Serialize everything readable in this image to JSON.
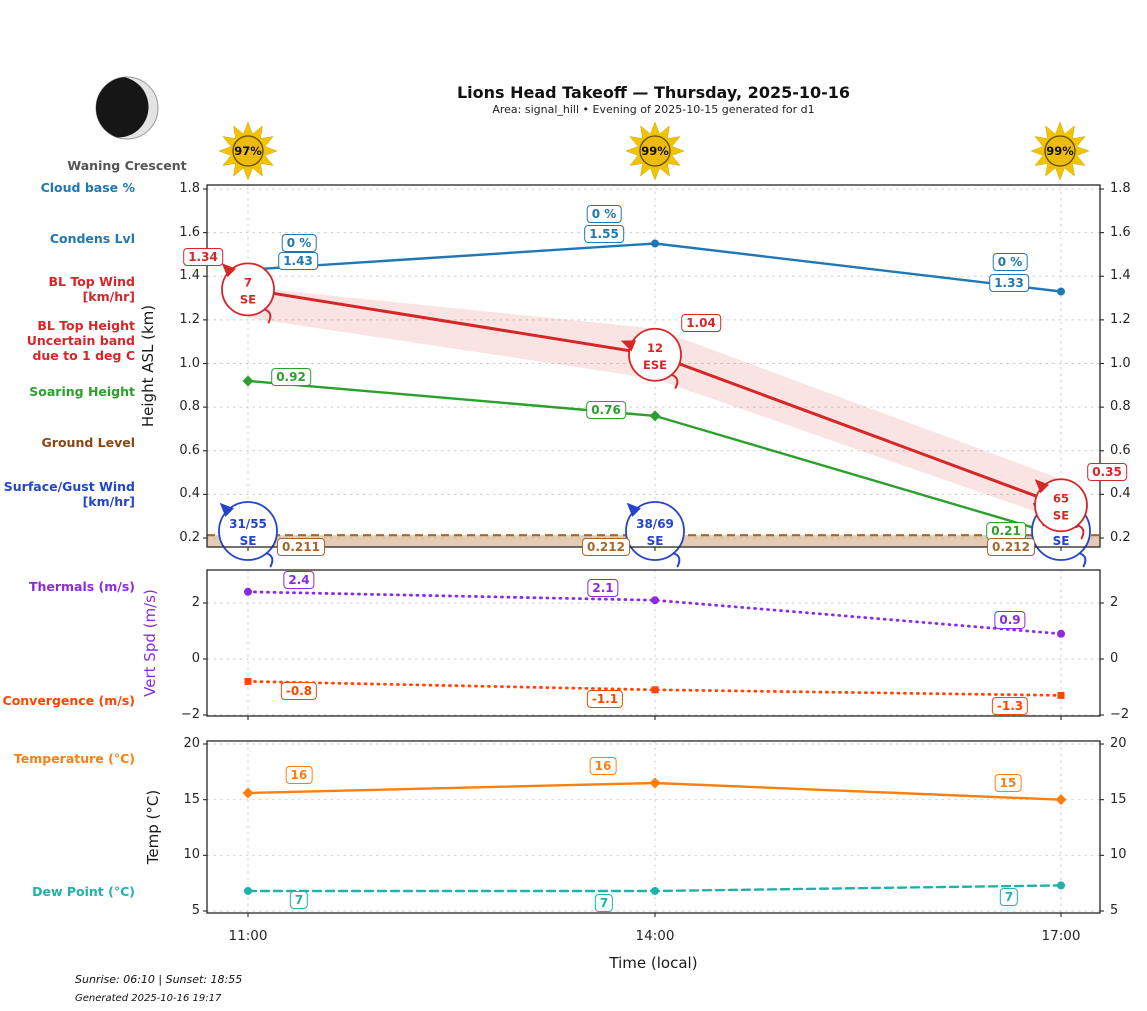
{
  "header": {
    "title": "Lions Head Takeoff — Thursday, 2025-10-16",
    "subtitle": "Area: signal_hill • Evening of 2025-10-15 generated for d1"
  },
  "moon": {
    "label": "Waning Crescent",
    "phase": "waning-crescent"
  },
  "suns": [
    {
      "percent": "97%"
    },
    {
      "percent": "99%"
    },
    {
      "percent": "99%"
    }
  ],
  "sidebar_labels": [
    {
      "id": "cloud-base",
      "lines": [
        "Cloud base %"
      ],
      "color": "#1f77b4"
    },
    {
      "id": "condens-lvl",
      "lines": [
        "Condens Lvl"
      ],
      "color": "#1f77b4"
    },
    {
      "id": "bl-top-wind",
      "lines": [
        "BL Top Wind",
        "[km/hr]"
      ],
      "color": "#d62728"
    },
    {
      "id": "bl-top-height",
      "lines": [
        "BL Top Height",
        "Uncertain band",
        "due to 1 deg C"
      ],
      "color": "#d62728"
    },
    {
      "id": "soaring-height",
      "lines": [
        "Soaring Height"
      ],
      "color": "#2ca02c"
    },
    {
      "id": "ground-level",
      "lines": [
        "Ground Level"
      ],
      "color": "#8b4513"
    },
    {
      "id": "surface-gust-wind",
      "lines": [
        "Surface/Gust Wind",
        "[km/hr]"
      ],
      "color": "#2444cc"
    },
    {
      "id": "thermals",
      "lines": [
        "Thermals (m/s)"
      ],
      "color": "#8a2be2"
    },
    {
      "id": "convergence",
      "lines": [
        "Convergence (m/s)"
      ],
      "color": "#ff4500"
    },
    {
      "id": "temperature",
      "lines": [
        "Temperature (°C)"
      ],
      "color": "#ff7f0e"
    },
    {
      "id": "dew-point",
      "lines": [
        "Dew Point (°C)"
      ],
      "color": "#20b2aa"
    }
  ],
  "x_axis": {
    "ticks": [
      "11:00",
      "14:00",
      "17:00"
    ],
    "label": "Time (local)"
  },
  "footer": {
    "sun_times": "Sunrise: 06:10 | Sunset: 18:55",
    "generated": "Generated 2025-10-16 19:17"
  },
  "chart_data": [
    {
      "type": "line",
      "ylabel": "Height ASL (km)",
      "x": [
        "11:00",
        "14:00",
        "17:00"
      ],
      "ylim": [
        0.2,
        1.8
      ],
      "yticks": [
        0.2,
        0.4,
        0.6,
        0.8,
        1.0,
        1.2,
        1.4,
        1.6,
        1.8
      ],
      "grid": true,
      "series": [
        {
          "name": "Condens Lvl",
          "color": "#1f77b4",
          "line": "solid",
          "marker": "circle",
          "values": [
            1.43,
            1.55,
            1.33
          ],
          "value_labels": [
            "1.43",
            "1.55",
            "1.33"
          ],
          "cloud_base_labels": [
            "0 %",
            "0 %",
            "0 %"
          ]
        },
        {
          "name": "BL Top Height",
          "color": "#d62728",
          "line": "solid",
          "marker": "wind-circle",
          "values": [
            1.34,
            1.04,
            0.35
          ],
          "value_labels": [
            "1.34",
            "1.04",
            "0.35"
          ],
          "wind": [
            {
              "speed": "7",
              "dir": "SE"
            },
            {
              "speed": "12",
              "dir": "ESE"
            },
            {
              "speed": "65",
              "dir": "SE"
            }
          ],
          "band_upper": [
            1.35,
            1.16,
            0.47
          ],
          "band_lower": [
            1.21,
            0.93,
            0.28
          ],
          "band_color": "rgba(214,39,40,0.13)"
        },
        {
          "name": "Soaring Height",
          "color": "#2ca02c",
          "line": "solid",
          "marker": "diamond",
          "values": [
            0.92,
            0.76,
            0.21
          ],
          "value_labels": [
            "0.92",
            "0.76",
            "0.21"
          ]
        },
        {
          "name": "Ground Level",
          "color": "#a5682a",
          "line": "dashed",
          "values": [
            0.211,
            0.212,
            0.212
          ],
          "value_labels": [
            "0.211",
            "0.212",
            "0.212"
          ],
          "fill_color": "rgba(205,164,118,0.55)"
        },
        {
          "name": "Surface/Gust Wind",
          "color": "#2444cc",
          "marker": "wind-circle",
          "wind": [
            {
              "speed": "31/55",
              "dir": "SE"
            },
            {
              "speed": "38/69",
              "dir": "SE"
            },
            {
              "speed": "42/76",
              "dir": "SE"
            }
          ]
        }
      ]
    },
    {
      "type": "line",
      "ylabel": "Vert Spd (m/s)",
      "x": [
        "11:00",
        "14:00",
        "17:00"
      ],
      "ylim": [
        -2.2,
        3.2
      ],
      "yticks": [
        2,
        0,
        -2
      ],
      "ytick_labels": [
        "2",
        "0",
        "−2"
      ],
      "grid": true,
      "series": [
        {
          "name": "Thermals",
          "color": "#8a2be2",
          "line": "dotted",
          "marker": "circle",
          "values": [
            2.4,
            2.1,
            0.9
          ],
          "value_labels": [
            "2.4",
            "2.1",
            "0.9"
          ]
        },
        {
          "name": "Convergence",
          "color": "#ff4500",
          "line": "dotted",
          "marker": "square",
          "values": [
            -0.8,
            -1.1,
            -1.3
          ],
          "value_labels": [
            "-0.8",
            "-1.1",
            "-1.3"
          ]
        }
      ]
    },
    {
      "type": "line",
      "ylabel": "Temp (°C)",
      "x": [
        "11:00",
        "14:00",
        "17:00"
      ],
      "ylim": [
        4.8,
        20.3
      ],
      "yticks": [
        5,
        10,
        15,
        20
      ],
      "grid": true,
      "series": [
        {
          "name": "Temperature",
          "color": "#ff7f0e",
          "line": "solid",
          "marker": "diamond",
          "values": [
            15.6,
            16.5,
            15.0
          ],
          "value_labels": [
            "16",
            "16",
            "15"
          ]
        },
        {
          "name": "Dew Point",
          "color": "#20b2aa",
          "line": "dashed",
          "marker": "circle",
          "values": [
            6.8,
            6.8,
            7.3
          ],
          "value_labels": [
            "7",
            "7",
            "7"
          ]
        }
      ]
    }
  ]
}
